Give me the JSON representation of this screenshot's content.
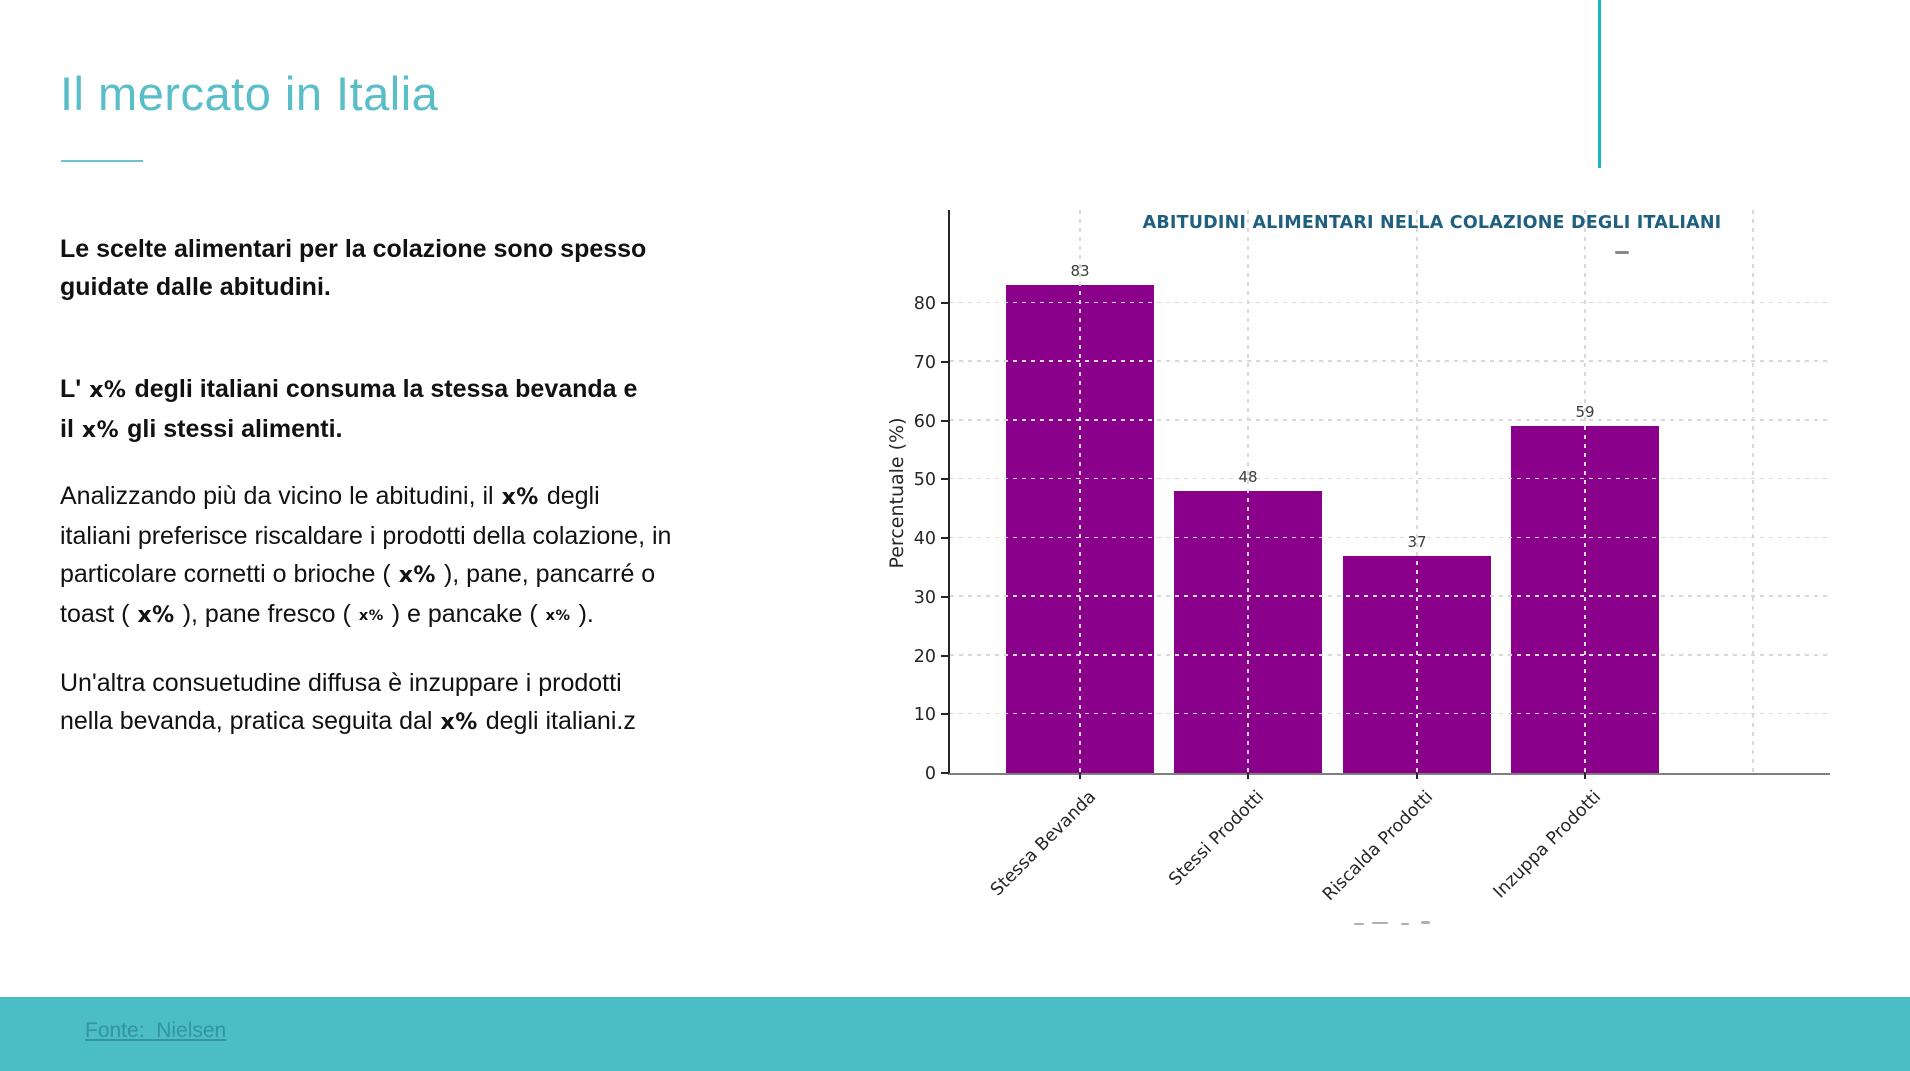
{
  "slide": {
    "title": "Il mercato in Italia",
    "footer": {
      "source_label": "Fonte:  Nielsen"
    }
  },
  "body": {
    "paragraphs": [
      {
        "weight": "bold",
        "segments": [
          {
            "t": "Le scelte alimentari per la colazione sono spesso",
            "s": "b"
          },
          {
            "t": "",
            "s": "br"
          },
          {
            "t": "guidate dalle abitudini.",
            "s": "b"
          }
        ]
      },
      {
        "weight": "bold",
        "segments": [
          {
            "t": "L'",
            "s": "b"
          },
          {
            "t": "x%",
            "s": "tok"
          },
          {
            "t": "degli italiani consuma la stessa bevanda e",
            "s": "b"
          },
          {
            "t": "",
            "s": "br"
          },
          {
            "t": "il",
            "s": "b"
          },
          {
            "t": "x%",
            "s": "tok"
          },
          {
            "t": "gli stessi alimenti.",
            "s": "b"
          }
        ]
      },
      {
        "weight": "normal",
        "segments": [
          {
            "t": "Analizzando più da vicino le abitudini, il",
            "s": "n"
          },
          {
            "t": "x%",
            "s": "tok"
          },
          {
            "t": "degli",
            "s": "n"
          },
          {
            "t": "",
            "s": "br"
          },
          {
            "t": "italiani preferisce riscaldare i prodotti della colazione, in",
            "s": "n"
          },
          {
            "t": "",
            "s": "br"
          },
          {
            "t": "particolare cornetti o brioche (",
            "s": "n"
          },
          {
            "t": "x%",
            "s": "tok"
          },
          {
            "t": "), pane, pancarré o",
            "s": "n"
          },
          {
            "t": "",
            "s": "br"
          },
          {
            "t": "toast (",
            "s": "n"
          },
          {
            "t": "x%",
            "s": "tok"
          },
          {
            "t": "), pane fresco (",
            "s": "n"
          },
          {
            "t": "x%",
            "s": "tok-sm"
          },
          {
            "t": ") e pancake (",
            "s": "n"
          },
          {
            "t": "x%",
            "s": "tok-sm"
          },
          {
            "t": ").",
            "s": "n"
          }
        ]
      },
      {
        "weight": "normal",
        "segments": [
          {
            "t": "Un'altra consuetudine diffusa è inzuppare i prodotti",
            "s": "n"
          },
          {
            "t": "",
            "s": "br"
          },
          {
            "t": "nella bevanda, pratica seguita dal",
            "s": "n"
          },
          {
            "t": "x%",
            "s": "tok"
          },
          {
            "t": "degli italiani.z",
            "s": "n"
          }
        ]
      }
    ]
  },
  "chart": {
    "title": "ABITUDINI ALIMENTARI NELLA COLAZIONE DEGLI ITALIANI",
    "ylabel": "Percentuale (%)"
  },
  "chart_data": {
    "type": "bar",
    "categories": [
      "Stessa Bevanda",
      "Stessi Prodotti",
      "Riscalda Prodotti",
      "Inzuppa Prodotti"
    ],
    "values": [
      83,
      48,
      37,
      59
    ],
    "title": "ABITUDINI ALIMENTARI NELLA COLAZIONE DEGLI ITALIANI",
    "xlabel": "",
    "ylabel": "Percentuale (%)",
    "ylim": [
      0,
      95
    ],
    "yticks": [
      0,
      10,
      20,
      30,
      40,
      50,
      60,
      70,
      80
    ],
    "grid": true,
    "grid_style": "dashed",
    "legend": "none",
    "bar_color": "#8b008b",
    "xtick_rotation": 45
  },
  "colors": {
    "slide_title": "#59bec8",
    "accent_line": "#14b9bf",
    "footer_bar": "#4bbdc5",
    "footer_text": "#35949e",
    "chart_title": "#1f5f80",
    "bar": "#8b008b"
  }
}
